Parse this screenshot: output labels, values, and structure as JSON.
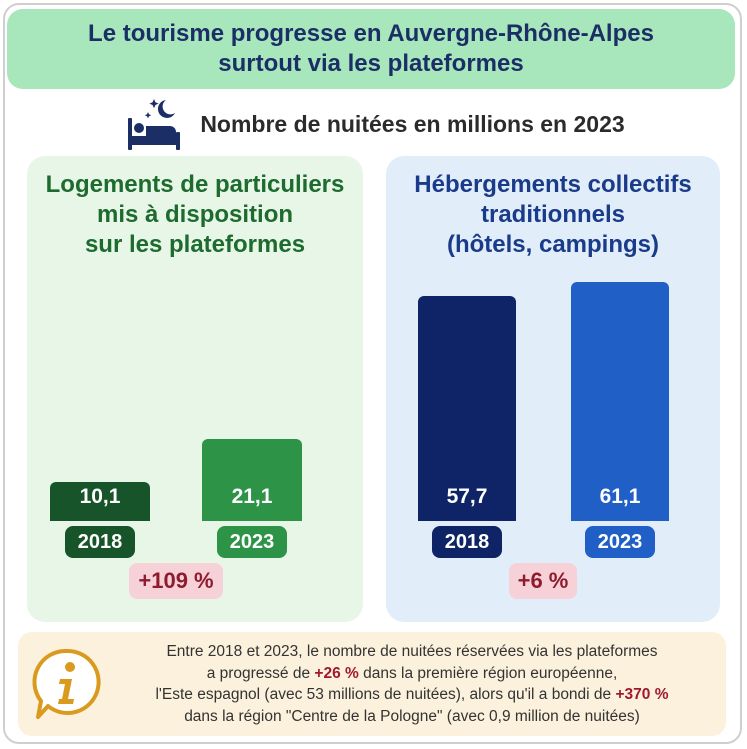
{
  "title": {
    "line1": "Le tourisme progresse en Auvergne-Rhône-Alpes",
    "line2": "surtout via les plateformes"
  },
  "subtitle": "Nombre de nuitées en millions en 2023",
  "icons": {
    "header": "bed-night-icon",
    "note": "info-icon"
  },
  "colors": {
    "title_bg": "#a8e6bc",
    "left_panel_bg": "#e8f6e8",
    "right_panel_bg": "#e1eef9",
    "bar_2018_left": "#17542a",
    "bar_2023_left": "#2d9447",
    "bar_2018_right": "#0e2466",
    "bar_2023_right": "#1f5fc6",
    "pct_badge_bg": "#f6d2d8",
    "pct_text": "#8e1b2e"
  },
  "chart_data": [
    {
      "type": "bar",
      "title_lines": [
        "Logements de particuliers",
        "mis à disposition",
        "sur les plateformes"
      ],
      "categories": [
        "2018",
        "2023"
      ],
      "values": [
        10.1,
        21.1
      ],
      "value_labels": [
        "10,1",
        "21,1"
      ],
      "change_label": "+109 %",
      "ylim": [
        0,
        64
      ]
    },
    {
      "type": "bar",
      "title_lines": [
        "Hébergements collectifs",
        "traditionnels",
        "(hôtels, campings)"
      ],
      "categories": [
        "2018",
        "2023"
      ],
      "values": [
        57.7,
        61.1
      ],
      "value_labels": [
        "57,7",
        "61,1"
      ],
      "change_label": "+6 %",
      "ylim": [
        0,
        64
      ]
    }
  ],
  "note": {
    "line1": "Entre 2018 et 2023, le nombre de nuitées réservées via les plateformes",
    "line2_pre": "a progressé de ",
    "line2_bold": "+26 %",
    "line2_post": " dans la première région européenne,",
    "line3_pre": "l'Este espagnol (avec 53 millions de nuitées), alors qu'il a bondi de ",
    "line3_bold": "+370 %",
    "line4": "dans la région \"Centre de la Pologne\" (avec 0,9 million de nuitées)"
  }
}
